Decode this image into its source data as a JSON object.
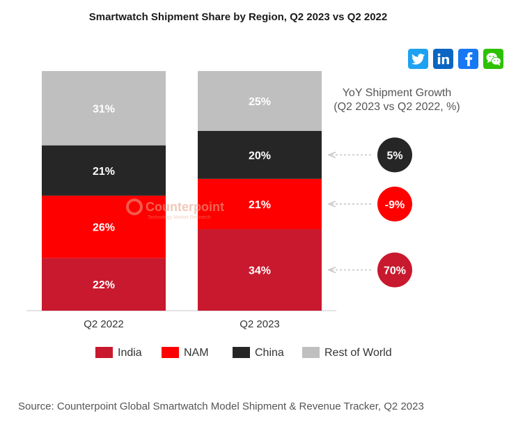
{
  "title": "Smartwatch Shipment Share by Region, Q2 2023 vs Q2 2022",
  "watermark": {
    "name": "Counterpoint",
    "tagline": "Technology Market Research"
  },
  "social_icons": [
    {
      "icon": "twitter-icon",
      "color": "#1da1f2"
    },
    {
      "icon": "linkedin-icon",
      "color": "#0a66c2"
    },
    {
      "icon": "facebook-icon",
      "color": "#1877f2"
    },
    {
      "icon": "wechat-icon",
      "color": "#2dc100"
    }
  ],
  "source": "Source: Counterpoint Global Smartwatch Model Shipment & Revenue Tracker, Q2 2023",
  "chart_data": {
    "type": "bar",
    "stacked": true,
    "percent_stacked": true,
    "categories": [
      "Q2 2022",
      "Q2 2023"
    ],
    "series": [
      {
        "name": "India",
        "color": "#c8192e",
        "values": [
          22,
          34
        ],
        "labels": [
          "22%",
          "34%"
        ]
      },
      {
        "name": "NAM",
        "color": "#ff0000",
        "values": [
          26,
          21
        ],
        "labels": [
          "26%",
          "21%"
        ]
      },
      {
        "name": "China",
        "color": "#262626",
        "values": [
          21,
          20
        ],
        "labels": [
          "21%",
          "20%"
        ]
      },
      {
        "name": "Rest of World",
        "color": "#bfbfbf",
        "values": [
          31,
          25
        ],
        "labels": [
          "31%",
          "25%"
        ]
      }
    ],
    "yoy_growth": {
      "title_line1": "YoY Shipment Growth",
      "title_line2": "(Q2 2023 vs Q2 2022, %)",
      "items": [
        {
          "series": "China",
          "label": "5%",
          "color": "#262626"
        },
        {
          "series": "NAM",
          "label": "-9%",
          "color": "#ff0000"
        },
        {
          "series": "India",
          "label": "70%",
          "color": "#c8192e"
        }
      ]
    },
    "legend_position": "bottom",
    "grid": false
  }
}
